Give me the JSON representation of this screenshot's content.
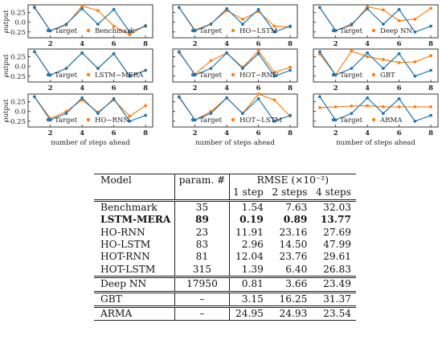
{
  "chart_data": {
    "type": "line",
    "x": [
      1,
      2,
      3,
      4,
      5,
      6,
      7,
      8
    ],
    "x_ticks": [
      2,
      4,
      6,
      8
    ],
    "y_ticks": [
      -0.25,
      0.0,
      0.25
    ],
    "y_tick_labels": [
      "−0.25",
      "0.0",
      "0.25"
    ],
    "ylim": [
      -0.4,
      0.45
    ],
    "xlim": [
      0.6,
      8.45
    ],
    "ylabel": "output",
    "xlabel": "number of steps ahead",
    "target_color": "#1f77b4",
    "prediction_color": "#ff7f0e",
    "legend_position": "bottom",
    "target_name": "Target",
    "target": [
      0.38,
      -0.22,
      -0.05,
      0.35,
      -0.05,
      0.33,
      -0.25,
      -0.1
    ],
    "panels": [
      {
        "name": "Benchmark",
        "values": [
          0.4,
          -0.22,
          -0.07,
          0.42,
          0.3,
          -0.1,
          -0.32,
          -0.08
        ]
      },
      {
        "name": "HO−LSTM",
        "values": [
          0.38,
          -0.2,
          -0.04,
          0.3,
          0.08,
          0.28,
          -0.1,
          -0.12
        ]
      },
      {
        "name": "Deep NN",
        "values": [
          0.38,
          -0.21,
          -0.08,
          0.4,
          0.32,
          0.04,
          0.08,
          0.36
        ]
      },
      {
        "name": "LSTM−MERA",
        "values": [
          0.38,
          -0.22,
          -0.05,
          0.35,
          -0.05,
          0.33,
          -0.25,
          -0.1
        ]
      },
      {
        "name": "HOT−RNN",
        "values": [
          0.36,
          -0.2,
          0.15,
          0.35,
          -0.02,
          0.4,
          -0.15,
          -0.02
        ]
      },
      {
        "name": "GBT",
        "values": [
          0.32,
          -0.22,
          0.4,
          0.25,
          0.18,
          0.1,
          0.12,
          0.28
        ]
      },
      {
        "name": "HO−RNN",
        "values": [
          0.38,
          -0.18,
          0.0,
          0.3,
          -0.02,
          0.3,
          -0.12,
          0.15
        ]
      },
      {
        "name": "HOT−LSTM",
        "values": [
          0.36,
          -0.22,
          0.0,
          0.35,
          -0.05,
          0.45,
          0.3,
          -0.12
        ]
      },
      {
        "name": "ARMA",
        "values": [
          0.1,
          0.12,
          0.14,
          0.15,
          0.12,
          0.12,
          0.12,
          0.12
        ]
      }
    ]
  },
  "table": {
    "model_header": "Model",
    "param_header": "param. #",
    "rmse_header": "RMSE (×10⁻²)",
    "step_headers": [
      "1 step",
      "2 steps",
      "4 steps"
    ],
    "rows": [
      {
        "model": "Benchmark",
        "params": "35",
        "s1": "1.54",
        "s2": "7.63",
        "s4": "32.03"
      },
      {
        "model": "LSTM-MERA",
        "params": "89",
        "s1": "0.19",
        "s2": "0.89",
        "s4": "13.77"
      },
      {
        "model": "HO-RNN",
        "params": "23",
        "s1": "11.91",
        "s2": "23.16",
        "s4": "27.69"
      },
      {
        "model": "HO-LSTM",
        "params": "83",
        "s1": "2.96",
        "s2": "14.50",
        "s4": "47.99"
      },
      {
        "model": "HOT-RNN",
        "params": "81",
        "s1": "12.04",
        "s2": "23.76",
        "s4": "29.61"
      },
      {
        "model": "HOT-LSTM",
        "params": "315",
        "s1": "1.39",
        "s2": "6.40",
        "s4": "26.83"
      },
      {
        "model": "Deep NN",
        "params": "17950",
        "s1": "0.81",
        "s2": "3.66",
        "s4": "23.49"
      },
      {
        "model": "GBT",
        "params": "–",
        "s1": "3.15",
        "s2": "16.25",
        "s4": "31.37"
      },
      {
        "model": "ARMA",
        "params": "–",
        "s1": "24.95",
        "s2": "24.93",
        "s4": "23.54"
      }
    ]
  }
}
